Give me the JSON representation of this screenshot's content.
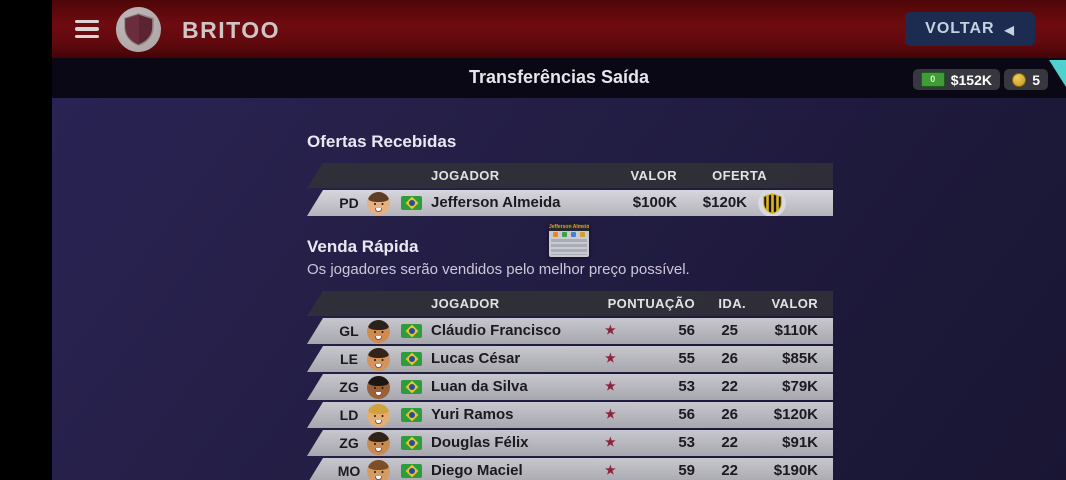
{
  "top_bar": {
    "team_name": "BRITOO",
    "back_label": "VOLTAR"
  },
  "header": {
    "title": "Transferências Saída",
    "cash": "$152K",
    "cash_icon_label": "0",
    "coins": "5"
  },
  "icons": {
    "back": "◀",
    "star": "★"
  },
  "offers": {
    "heading": "Ofertas Recebidas",
    "columns": [
      "JOGADOR",
      "VALOR",
      "OFERTA"
    ],
    "rows": [
      {
        "pos": "PD",
        "name": "Jefferson Almeida",
        "value": "$100K",
        "offer": "$120K",
        "nationality": "brazil-flag",
        "avatar": {
          "skin": "#e5b184",
          "hair": "#5d3d26"
        }
      }
    ]
  },
  "quick_sale": {
    "heading": "Venda Rápida",
    "subtitle": "Os jogadores serão vendidos pelo melhor preço possível.",
    "columns": [
      "JOGADOR",
      "PONTUAÇÃO",
      "IDA.",
      "VALOR"
    ],
    "rows": [
      {
        "pos": "GL",
        "name": "Cláudio Francisco",
        "rating": "56",
        "age": "25",
        "value": "$110K",
        "nationality": "brazil-flag",
        "avatar": {
          "skin": "#d08b4f",
          "hair": "#2a211c"
        }
      },
      {
        "pos": "LE",
        "name": "Lucas César",
        "rating": "55",
        "age": "26",
        "value": "$85K",
        "nationality": "brazil-flag",
        "avatar": {
          "skin": "#d3935a",
          "hair": "#33241a"
        }
      },
      {
        "pos": "ZG",
        "name": "Luan da Silva",
        "rating": "53",
        "age": "22",
        "value": "$79K",
        "nationality": "brazil-flag",
        "avatar": {
          "skin": "#9a6038",
          "hair": "#1c1714"
        }
      },
      {
        "pos": "LD",
        "name": "Yuri Ramos",
        "rating": "56",
        "age": "26",
        "value": "$120K",
        "nationality": "brazil-flag",
        "avatar": {
          "skin": "#e2ae72",
          "hair": "#d1a13b"
        }
      },
      {
        "pos": "ZG",
        "name": "Douglas Félix",
        "rating": "53",
        "age": "22",
        "value": "$91K",
        "nationality": "brazil-flag",
        "avatar": {
          "skin": "#c98a52",
          "hair": "#2e2318"
        }
      },
      {
        "pos": "MO",
        "name": "Diego Maciel",
        "rating": "59",
        "age": "22",
        "value": "$190K",
        "nationality": "brazil-flag",
        "avatar": {
          "skin": "#d59c62",
          "hair": "#7c4f28"
        }
      }
    ]
  },
  "mini_card": {
    "title": "Jefferson Almeida"
  },
  "colors": {
    "top_bar_red": "#6e0b10",
    "back_button_navy": "#1c2c50",
    "content_navy": "#211c41",
    "row_light": "#b7b7bd",
    "table_header_dark": "#303038",
    "star_red": "#8e2138",
    "cash_green": "#3f9c36",
    "coin_gold": "#c9941d",
    "corner_teal": "#4ed2cd"
  }
}
